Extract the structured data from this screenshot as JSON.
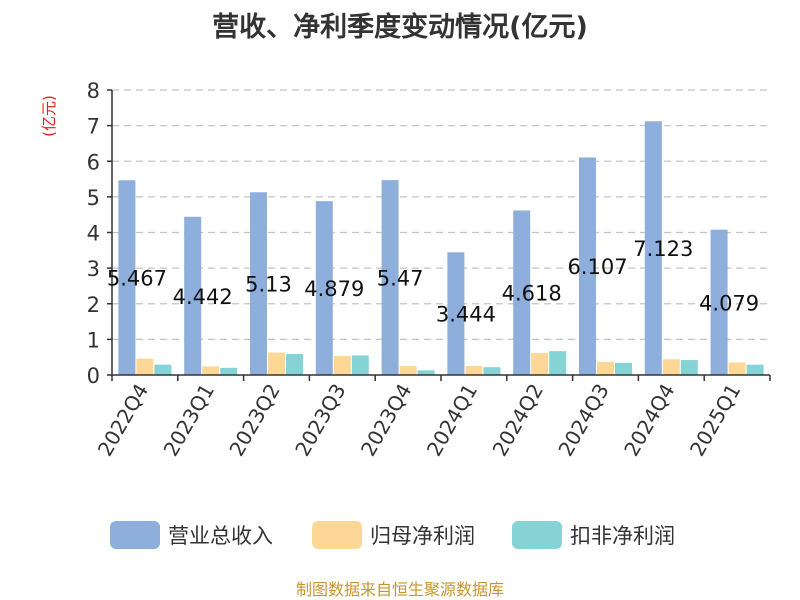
{
  "chart_data": {
    "type": "bar",
    "title": "营收、净利季度变动情况(亿元)",
    "ylabel": "(亿元)",
    "ylim": [
      0,
      8
    ],
    "yticks": [
      0,
      1,
      2,
      3,
      4,
      5,
      6,
      7,
      8
    ],
    "grid": true,
    "legend_position": "bottom",
    "categories": [
      "2022Q4",
      "2023Q1",
      "2023Q2",
      "2023Q3",
      "2023Q4",
      "2024Q1",
      "2024Q2",
      "2024Q3",
      "2024Q4",
      "2025Q1"
    ],
    "series": [
      {
        "name": "营业总收入",
        "color": "#8eaedb",
        "values": [
          5.467,
          4.442,
          5.13,
          4.879,
          5.47,
          3.444,
          4.618,
          6.107,
          7.123,
          4.079
        ],
        "labels": [
          "5.467",
          "4.442",
          "5.13",
          "4.879",
          "5.47",
          "3.444",
          "4.618",
          "6.107",
          "7.123",
          "4.079"
        ]
      },
      {
        "name": "归母净利润",
        "color": "#fdd796",
        "values": [
          0.46,
          0.24,
          0.63,
          0.53,
          0.25,
          0.25,
          0.62,
          0.37,
          0.44,
          0.35
        ]
      },
      {
        "name": "扣非净利润",
        "color": "#86d3d6",
        "values": [
          0.29,
          0.2,
          0.59,
          0.55,
          0.13,
          0.22,
          0.67,
          0.34,
          0.42,
          0.29
        ]
      }
    ]
  },
  "source": "制图数据来自恒生聚源数据库"
}
